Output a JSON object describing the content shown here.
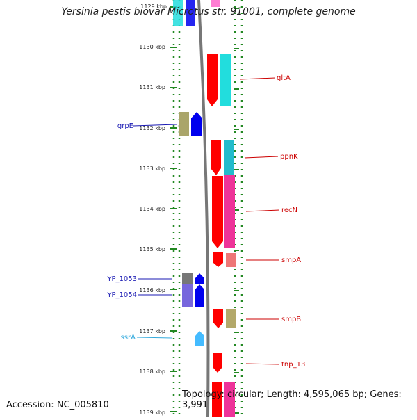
{
  "title": "Yersinia pestis biovar Microtus str. 91001, complete genome",
  "footer": {
    "accession": "Accession: NC_005810",
    "summary": "Topology: circular; Length: 4,595,065 bp; Genes: 3,991"
  },
  "ticks": [
    "1129 kbp",
    "1130 kbp",
    "1131 kbp",
    "1132 kbp",
    "1133 kbp",
    "1134 kbp",
    "1135 kbp",
    "1136 kbp",
    "1137 kbp",
    "1138 kbp",
    "1139 kbp"
  ],
  "labels_right": [
    "gltA",
    "ppnK",
    "recN",
    "smpA",
    "smpB",
    "tnp_13"
  ],
  "labels_left": [
    "grpE",
    "YP_1053",
    "YP_1054",
    "ssrA"
  ],
  "colors": {
    "forward_cds": "#ff0000",
    "reverse_cds": "#0000ff",
    "trna": "#33bbee",
    "label_right": "#cc0000",
    "label_left": "#1a1ab3",
    "label_trna": "#33aadd",
    "backbone": "#777777",
    "dots": "#228822"
  }
}
